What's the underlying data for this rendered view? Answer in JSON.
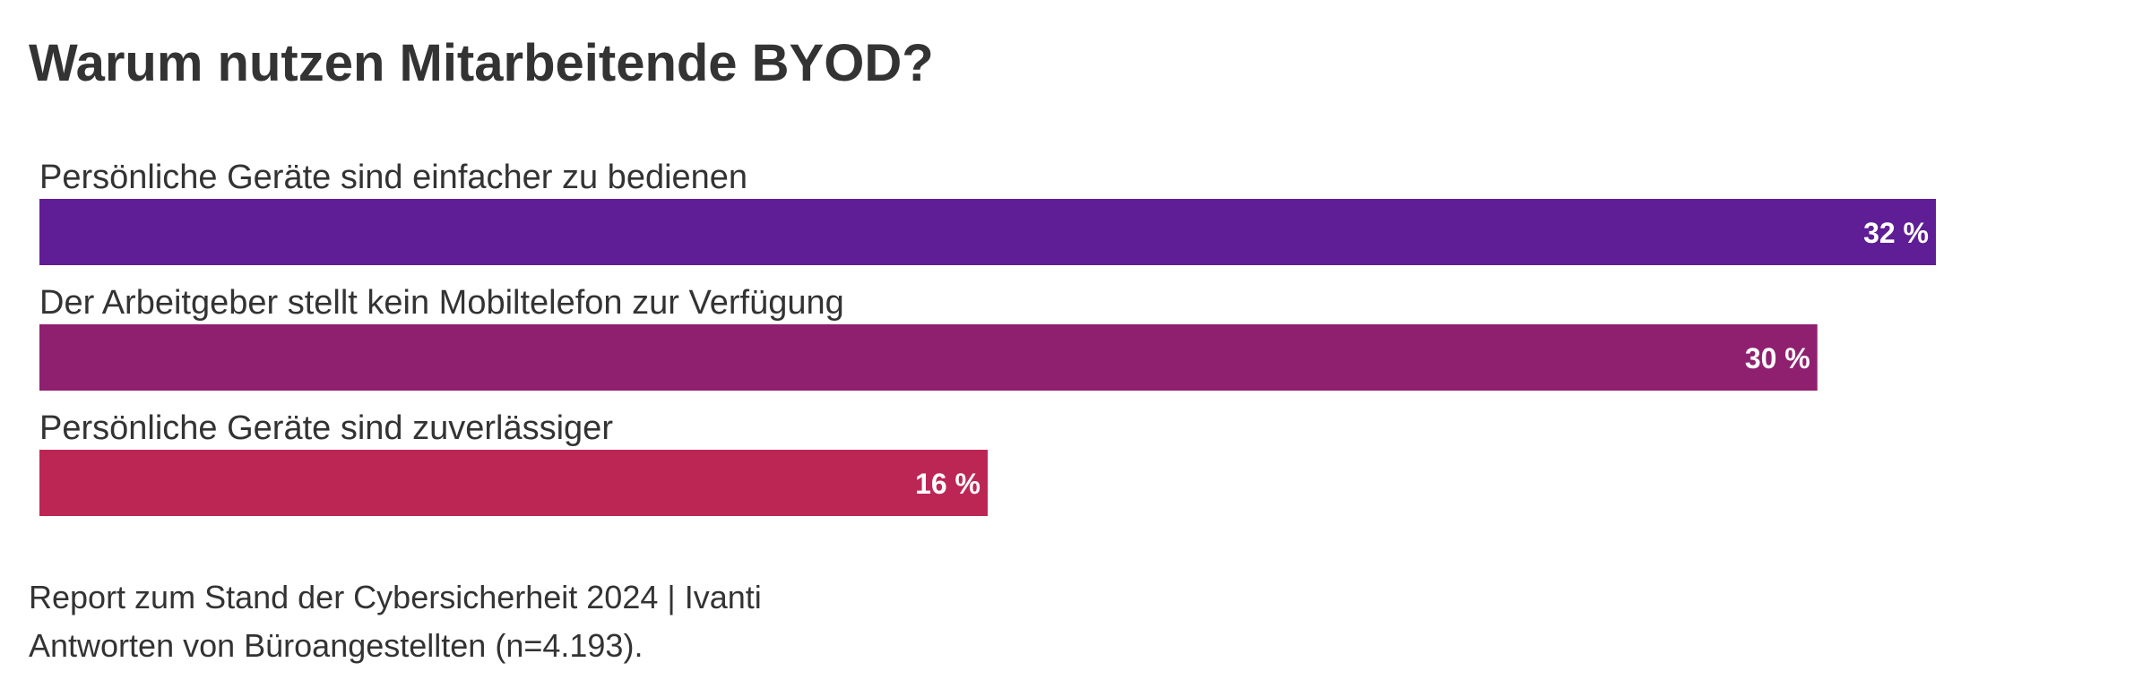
{
  "chart_data": {
    "type": "bar",
    "orientation": "horizontal",
    "title": "Warum nutzen Mitarbeitende BYOD?",
    "categories": [
      "Persönliche Geräte sind einfacher zu bedienen",
      "Der Arbeitgeber stellt kein Mobiltelefon zur Verfügung",
      "Persönliche Geräte sind zuverlässiger"
    ],
    "values": [
      32,
      30,
      16
    ],
    "value_labels": [
      "32 %",
      "30 %",
      "16 %"
    ],
    "unit": "%",
    "colors": [
      "#5f1d96",
      "#8f2070",
      "#bc2655"
    ],
    "xlim": [
      0,
      32
    ],
    "grid": false,
    "legend": "none"
  },
  "notes": {
    "source": "Report zum Stand der Cybersicherheit 2024 | Ivanti",
    "sample": "Antworten von Büroangestellten (n=4.193)."
  }
}
